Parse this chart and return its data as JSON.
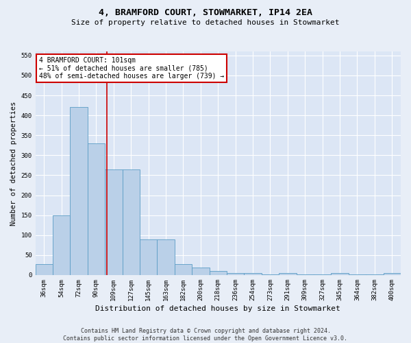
{
  "title": "4, BRAMFORD COURT, STOWMARKET, IP14 2EA",
  "subtitle": "Size of property relative to detached houses in Stowmarket",
  "xlabel": "Distribution of detached houses by size in Stowmarket",
  "ylabel": "Number of detached properties",
  "categories": [
    "36sqm",
    "54sqm",
    "72sqm",
    "90sqm",
    "109sqm",
    "127sqm",
    "145sqm",
    "163sqm",
    "182sqm",
    "200sqm",
    "218sqm",
    "236sqm",
    "254sqm",
    "273sqm",
    "291sqm",
    "309sqm",
    "327sqm",
    "345sqm",
    "364sqm",
    "382sqm",
    "400sqm"
  ],
  "values": [
    28,
    150,
    420,
    330,
    265,
    265,
    90,
    90,
    28,
    18,
    10,
    5,
    5,
    2,
    5,
    2,
    2,
    5,
    2,
    2,
    5
  ],
  "bar_color": "#bad0e8",
  "bar_edge_color": "#5a9cc5",
  "annotation_text": "4 BRAMFORD COURT: 101sqm\n← 51% of detached houses are smaller (785)\n48% of semi-detached houses are larger (739) →",
  "vline_x": 3.6,
  "vline_color": "#cc0000",
  "annotation_box_color": "#ffffff",
  "annotation_box_edge_color": "#cc0000",
  "footer_line1": "Contains HM Land Registry data © Crown copyright and database right 2024.",
  "footer_line2": "Contains public sector information licensed under the Open Government Licence v3.0.",
  "ylim": [
    0,
    560
  ],
  "yticks": [
    0,
    50,
    100,
    150,
    200,
    250,
    300,
    350,
    400,
    450,
    500,
    550
  ],
  "bg_color": "#e8eef7",
  "plot_bg_color": "#dce6f5",
  "title_fontsize": 9.5,
  "subtitle_fontsize": 8,
  "tick_fontsize": 6.5,
  "ylabel_fontsize": 7.5,
  "xlabel_fontsize": 8,
  "annotation_fontsize": 7,
  "footer_fontsize": 6
}
